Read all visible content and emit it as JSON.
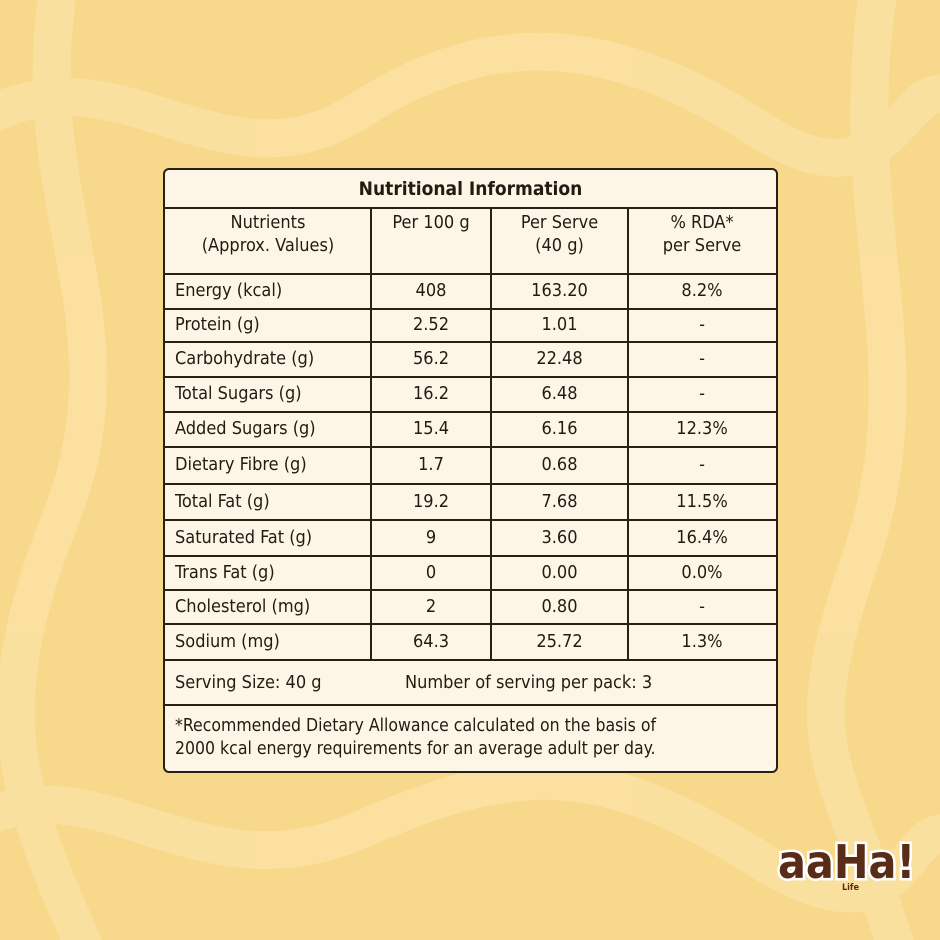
{
  "table": {
    "title": "Nutritional Information",
    "header": [
      [
        "Nutrients",
        "(Approx. Values)"
      ],
      [
        "Per 100 g"
      ],
      [
        "Per Serve",
        "(40 g)"
      ],
      [
        "% RDA*",
        "per Serve"
      ]
    ],
    "rows": [
      [
        "Energy (kcal)",
        "408",
        "163.20",
        "8.2%"
      ],
      [
        "Protein (g)",
        "2.52",
        "1.01",
        "-"
      ],
      [
        "Carbohydrate (g)",
        "56.2",
        "22.48",
        "-"
      ],
      [
        "Total Sugars (g)",
        "16.2",
        "6.48",
        "-"
      ],
      [
        "Added Sugars (g)",
        "15.4",
        "6.16",
        "12.3%"
      ],
      [
        "Dietary Fibre (g)",
        "1.7",
        "0.68",
        "-"
      ],
      [
        "Total Fat (g)",
        "19.2",
        "7.68",
        "11.5%"
      ],
      [
        "Saturated Fat (g)",
        "9",
        "3.60",
        "16.4%"
      ],
      [
        "Trans Fat (g)",
        "0",
        "0.00",
        "0.0%"
      ],
      [
        "Cholesterol (mg)",
        "2",
        "0.80",
        "-"
      ],
      [
        "Sodium (mg)",
        "64.3",
        "25.72",
        "1.3%"
      ]
    ],
    "serving_size": "Serving Size: 40 g",
    "servings_per_pack": "Number of serving per pack: 3",
    "footnote": [
      "*Recommended Dietary Allowance calculated on the basis of",
      "2000 kcal energy requirements for an average adult per day."
    ]
  },
  "logo": {
    "text": "aaHa!",
    "sub": "Life"
  }
}
